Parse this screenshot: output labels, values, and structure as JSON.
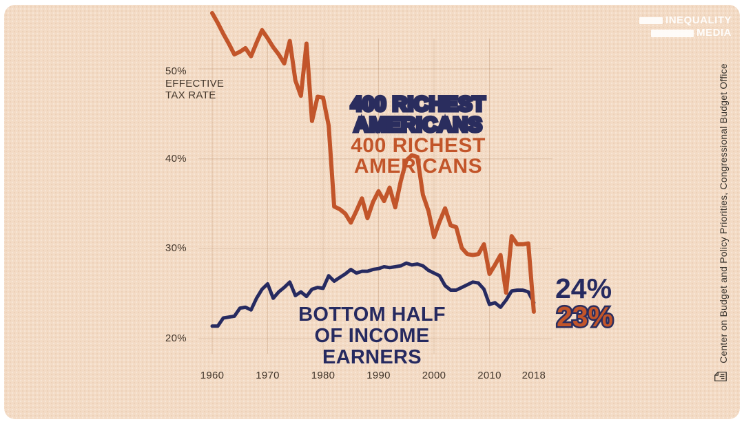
{
  "logo": {
    "line1": "INEQUALITY",
    "line2": "MEDIA"
  },
  "source": {
    "text": "Center on Budget and Policy Priorities, Congressional Budget Office"
  },
  "chart": {
    "y_axis_title": "50%\nEFFECTIVE\nTAX RATE",
    "series_label_richest": "400 RICHEST\nAMERICANS",
    "series_label_bottom": "BOTTOM HALF\nOF INCOME EARNERS",
    "end_label_blue": "24%",
    "end_label_orange": "23%"
  },
  "colors": {
    "background": "#f3dbc5",
    "frame": "#ffffff",
    "orange": "#c2552a",
    "navy": "#262a60",
    "axis_text": "#43362b",
    "grid": "rgba(167,120,82,0.25)",
    "logo_white": "rgba(255,255,255,0.9)"
  },
  "chart_data": {
    "type": "line",
    "title": "",
    "xlabel": "",
    "ylabel": "EFFECTIVE TAX RATE (%)",
    "ylim": [
      17.5,
      57.5
    ],
    "grid": true,
    "x": [
      1960,
      1961,
      1962,
      1963,
      1964,
      1965,
      1966,
      1967,
      1968,
      1969,
      1970,
      1971,
      1972,
      1973,
      1974,
      1975,
      1976,
      1977,
      1978,
      1979,
      1980,
      1981,
      1982,
      1983,
      1984,
      1985,
      1986,
      1987,
      1988,
      1989,
      1990,
      1991,
      1992,
      1993,
      1994,
      1995,
      1996,
      1997,
      1998,
      1999,
      2000,
      2001,
      2002,
      2003,
      2004,
      2005,
      2006,
      2007,
      2008,
      2009,
      2010,
      2011,
      2012,
      2013,
      2014,
      2015,
      2016,
      2017,
      2018
    ],
    "series": [
      {
        "name": "400 Richest Americans",
        "color": "#c2552a",
        "stroke_width": 6,
        "values": [
          56.2,
          55.1,
          53.9,
          52.8,
          51.6,
          51.9,
          52.3,
          51.4,
          52.9,
          54.3,
          53.4,
          52.4,
          51.6,
          50.6,
          53.1,
          48.7,
          47.0,
          52.8,
          44.2,
          46.9,
          46.8,
          43.7,
          34.7,
          34.4,
          33.9,
          32.9,
          34.2,
          35.6,
          33.4,
          35.2,
          36.4,
          35.3,
          36.8,
          34.6,
          37.5,
          39.8,
          40.4,
          40.2,
          36.0,
          34.2,
          31.3,
          33.0,
          34.5,
          32.6,
          32.4,
          30.1,
          29.4,
          29.3,
          29.4,
          30.5,
          27.2,
          28.2,
          29.3,
          25.1,
          31.4,
          30.5,
          30.5,
          30.6,
          23.0
        ]
      },
      {
        "name": "Bottom Half of Income Earners",
        "color": "#262a60",
        "stroke_width": 5,
        "values": [
          21.4,
          21.4,
          22.3,
          22.4,
          22.5,
          23.4,
          23.5,
          23.2,
          24.5,
          25.5,
          26.1,
          24.5,
          25.2,
          25.7,
          26.3,
          24.8,
          25.2,
          24.7,
          25.5,
          25.7,
          25.6,
          27.0,
          26.4,
          26.8,
          27.2,
          27.7,
          27.3,
          27.5,
          27.5,
          27.7,
          27.8,
          28.0,
          27.9,
          28.0,
          28.1,
          28.4,
          28.2,
          28.3,
          28.1,
          27.6,
          27.3,
          27.0,
          25.9,
          25.4,
          25.4,
          25.7,
          26.0,
          26.3,
          26.2,
          25.5,
          23.8,
          24.0,
          23.5,
          24.3,
          25.3,
          25.4,
          25.4,
          25.2,
          24.0
        ]
      }
    ],
    "end_values": {
      "bottom_half": 24,
      "richest": 23
    },
    "y_ticks": [
      {
        "label": "40%",
        "value": 40
      },
      {
        "label": "30%",
        "value": 30
      },
      {
        "label": "20%",
        "value": 20
      }
    ],
    "x_ticks": [
      {
        "label": "1960",
        "year": 1960
      },
      {
        "label": "1970",
        "year": 1970
      },
      {
        "label": "1980",
        "year": 1980
      },
      {
        "label": "1990",
        "year": 1990
      },
      {
        "label": "2000",
        "year": 2000
      },
      {
        "label": "2010",
        "year": 2010
      },
      {
        "label": "2018",
        "year": 2018
      }
    ],
    "y_grid": [
      50,
      40,
      30,
      20
    ],
    "x_grid_years": [
      1960,
      1970,
      1980,
      1990,
      2000,
      2010
    ],
    "legend_position": "inline-labels"
  }
}
